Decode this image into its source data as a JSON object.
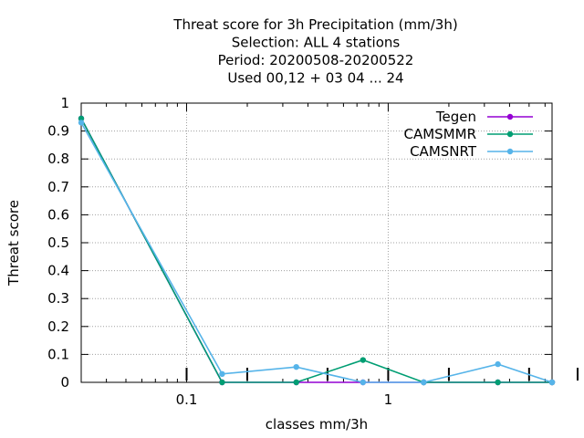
{
  "chart_data": {
    "type": "line",
    "title_lines": [
      "Threat score  for 3h Precipitation (mm/3h)",
      "Selection: ALL      4 stations",
      "Period: 20200508-20200522",
      "Used  00,12  + 03 04 ... 24"
    ],
    "xlabel": "classes mm/3h",
    "ylabel": "Threat score",
    "x_scale": "log",
    "xlim": [
      0.03,
      6.5
    ],
    "ylim": [
      0,
      1
    ],
    "x_ticks": [
      {
        "value": 0.1,
        "label": "0.1"
      },
      {
        "value": 1,
        "label": "1"
      }
    ],
    "y_ticks": [
      {
        "value": 0,
        "label": "0"
      },
      {
        "value": 0.1,
        "label": "0.1"
      },
      {
        "value": 0.2,
        "label": "0.2"
      },
      {
        "value": 0.3,
        "label": "0.3"
      },
      {
        "value": 0.4,
        "label": "0.4"
      },
      {
        "value": 0.5,
        "label": "0.5"
      },
      {
        "value": 0.6,
        "label": "0.6"
      },
      {
        "value": 0.7,
        "label": "0.7"
      },
      {
        "value": 0.8,
        "label": "0.8"
      },
      {
        "value": 0.9,
        "label": "0.9"
      },
      {
        "value": 1,
        "label": "1"
      }
    ],
    "grid": true,
    "legend_position": "top-right",
    "x": [
      0.03,
      0.15,
      0.35,
      0.75,
      1.5,
      3.5,
      6.5
    ],
    "series": [
      {
        "name": "Tegen",
        "color": "#9400d3",
        "values": [
          0.945,
          0.0,
          0.0,
          0.0,
          0.0,
          0.0,
          0.0
        ]
      },
      {
        "name": "CAMSMMR",
        "color": "#009e73",
        "values": [
          0.945,
          0.0,
          0.0,
          0.08,
          0.0,
          0.0,
          0.0
        ]
      },
      {
        "name": "CAMSNRT",
        "color": "#56b4e9",
        "values": [
          0.93,
          0.03,
          0.055,
          0.0,
          0.0,
          0.065,
          0.0
        ]
      }
    ],
    "bar_markers_x": [
      0.1,
      0.2,
      0.5,
      1,
      2,
      5,
      10
    ]
  }
}
